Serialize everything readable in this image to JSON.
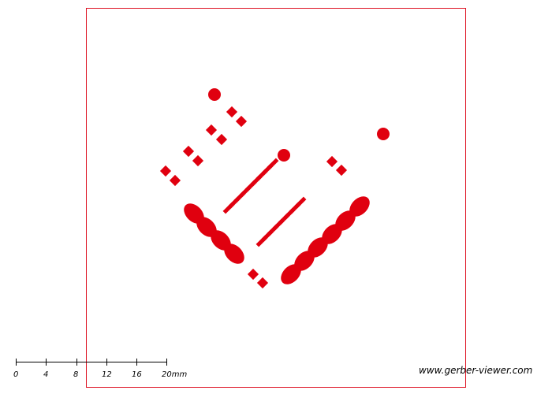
{
  "colors": {
    "pad": "#e0000f",
    "outline": "#dd1122",
    "scale": "#000000"
  },
  "scale_bar": {
    "labels": [
      "0",
      "4",
      "8",
      "12",
      "16",
      "20mm"
    ]
  },
  "watermark": "www.gerber-viewer.com"
}
